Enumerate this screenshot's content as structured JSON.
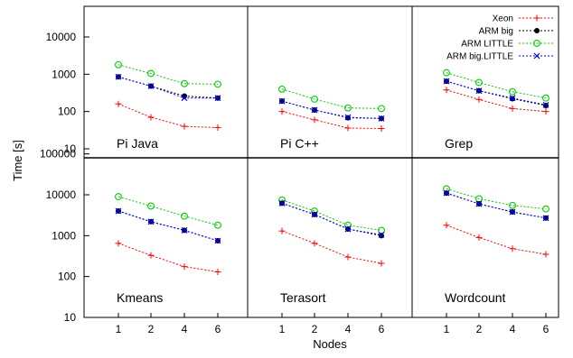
{
  "chart_data": {
    "type": "line",
    "xlabel": "Nodes",
    "ylabel": "Time [s]",
    "x": [
      1,
      2,
      4,
      6
    ],
    "x_tick_labels": [
      "1",
      "2",
      "4",
      "6"
    ],
    "yscale": "log",
    "ylim": [
      10,
      50000
    ],
    "y_tick_labels_top": [
      "10",
      "100",
      "1000",
      "10000"
    ],
    "y_tick_labels_bottom": [
      "10",
      "100",
      "1000",
      "10000",
      "100000"
    ],
    "legend_position": "top-right",
    "legend": [
      {
        "name": "Xeon",
        "color": "#ff0000",
        "marker": "plus"
      },
      {
        "name": "ARM big",
        "color": "#000000",
        "marker": "filled-circle"
      },
      {
        "name": "ARM LITTLE",
        "color": "#00cc00",
        "marker": "open-circle"
      },
      {
        "name": "ARM big.LITTLE",
        "color": "#0000ff",
        "marker": "cross"
      }
    ],
    "panels": [
      {
        "title": "Pi Java",
        "series": [
          {
            "name": "Xeon",
            "values": [
              160,
              70,
              40,
              37
            ]
          },
          {
            "name": "ARM big",
            "values": [
              850,
              480,
              260,
              230
            ]
          },
          {
            "name": "ARM LITTLE",
            "values": [
              1800,
              1050,
              560,
              540
            ]
          },
          {
            "name": "ARM big.LITTLE",
            "values": [
              850,
              480,
              230,
              230
            ]
          }
        ]
      },
      {
        "title": "Pi C++",
        "series": [
          {
            "name": "Xeon",
            "values": [
              100,
              60,
              36,
              35
            ]
          },
          {
            "name": "ARM big",
            "values": [
              190,
              110,
              68,
              65
            ]
          },
          {
            "name": "ARM LITTLE",
            "values": [
              400,
              215,
              125,
              120
            ]
          },
          {
            "name": "ARM big.LITTLE",
            "values": [
              190,
              110,
              70,
              65
            ]
          }
        ]
      },
      {
        "title": "Grep",
        "series": [
          {
            "name": "Xeon",
            "values": [
              380,
              210,
              120,
              100
            ]
          },
          {
            "name": "ARM big",
            "values": [
              650,
              360,
              220,
              145
            ]
          },
          {
            "name": "ARM LITTLE",
            "values": [
              1100,
              600,
              340,
              230
            ]
          },
          {
            "name": "ARM big.LITTLE",
            "values": [
              650,
              360,
              230,
              150
            ]
          }
        ]
      },
      {
        "title": "Kmeans",
        "series": [
          {
            "name": "Xeon",
            "values": [
              650,
              330,
              175,
              130
            ]
          },
          {
            "name": "ARM big",
            "values": [
              4000,
              2200,
              1350,
              750
            ]
          },
          {
            "name": "ARM LITTLE",
            "values": [
              9000,
              5300,
              3000,
              1800
            ]
          },
          {
            "name": "ARM big.LITTLE",
            "values": [
              4000,
              2200,
              1350,
              750
            ]
          }
        ]
      },
      {
        "title": "Terasort",
        "series": [
          {
            "name": "Xeon",
            "values": [
              1300,
              650,
              300,
              210
            ]
          },
          {
            "name": "ARM big",
            "values": [
              6200,
              3300,
              1450,
              1000
            ]
          },
          {
            "name": "ARM LITTLE",
            "values": [
              7500,
              4000,
              1800,
              1350
            ]
          },
          {
            "name": "ARM big.LITTLE",
            "values": [
              6200,
              3300,
              1450,
              1050
            ]
          }
        ]
      },
      {
        "title": "Wordcount",
        "series": [
          {
            "name": "Xeon",
            "values": [
              1800,
              900,
              480,
              350
            ]
          },
          {
            "name": "ARM big",
            "values": [
              11000,
              6000,
              3800,
              2700
            ]
          },
          {
            "name": "ARM LITTLE",
            "values": [
              14000,
              8000,
              5500,
              4500
            ]
          },
          {
            "name": "ARM big.LITTLE",
            "values": [
              11000,
              6000,
              3800,
              2700
            ]
          }
        ]
      }
    ]
  }
}
